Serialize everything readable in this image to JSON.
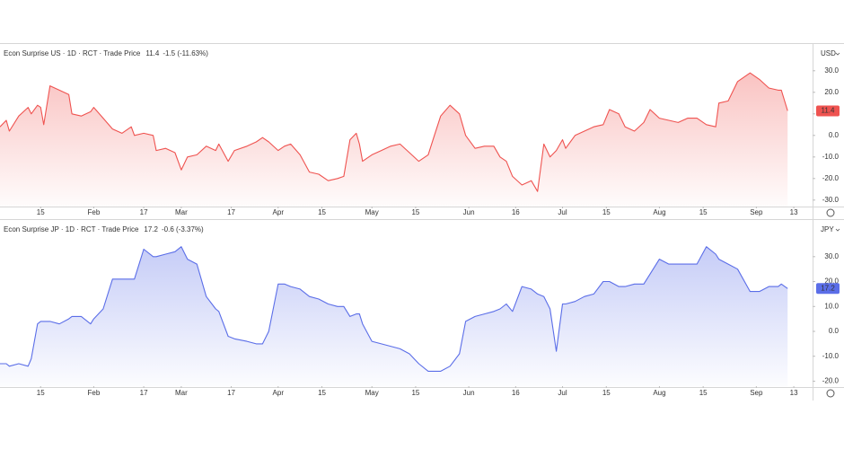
{
  "chart_data": [
    {
      "type": "area",
      "title": "Econ Surprise US · 1D · RCT · Trade Price",
      "change_label": "-1.5 (-11.63%)",
      "currency": "USD",
      "color": "#ef5350",
      "x": [
        2,
        4,
        5,
        8,
        11,
        12,
        14,
        15,
        16,
        18,
        21,
        24,
        25,
        28,
        31,
        32,
        35,
        38,
        41,
        44,
        45,
        48,
        51,
        52,
        55,
        58,
        60,
        62,
        65,
        68,
        71,
        72,
        75,
        77,
        81,
        84,
        86,
        88,
        91,
        93,
        95,
        98,
        101,
        104,
        107,
        110,
        112,
        114,
        116,
        117,
        118,
        121,
        124,
        127,
        130,
        133,
        136,
        139,
        141,
        143,
        146,
        149,
        151,
        154,
        157,
        160,
        162,
        164,
        166,
        169,
        172,
        174,
        176,
        178,
        180,
        182,
        183,
        186,
        189,
        192,
        195,
        197,
        200,
        202,
        205,
        208,
        210,
        213,
        216,
        219,
        222,
        225,
        228,
        231,
        232,
        235,
        238,
        242,
        245,
        248,
        251,
        252,
        254
      ],
      "values": [
        4,
        7,
        2,
        9,
        13,
        10,
        14,
        13,
        5,
        23,
        21,
        19,
        10,
        9,
        11,
        13,
        8,
        3,
        1,
        4,
        0,
        1,
        0,
        -7,
        -6,
        -8,
        -16,
        -10,
        -9,
        -5,
        -7,
        -4,
        -12,
        -7,
        -5,
        -3,
        -1,
        -3,
        -7,
        -5,
        -4,
        -9,
        -17,
        -18,
        -21,
        -20,
        -19,
        -2,
        1,
        -4,
        -12,
        -9,
        -7,
        -5,
        -4,
        -8,
        -12,
        -9,
        0,
        9,
        14,
        10,
        0,
        -6,
        -5,
        -5,
        -10,
        -12,
        -19,
        -23,
        -21,
        -26,
        -4,
        -10,
        -7,
        -2,
        -6,
        0,
        2,
        4,
        5,
        12,
        10,
        4,
        2,
        6,
        12,
        8,
        7,
        6,
        8,
        8,
        5,
        4,
        15,
        16,
        25,
        29,
        26,
        22,
        21,
        21,
        11.4
      ],
      "xlim": [
        2,
        262
      ],
      "xticks": [
        {
          "value": 15,
          "label": "15"
        },
        {
          "value": 32,
          "label": "Feb"
        },
        {
          "value": 48,
          "label": "17"
        },
        {
          "value": 60,
          "label": "Mar"
        },
        {
          "value": 76,
          "label": "17"
        },
        {
          "value": 91,
          "label": "Apr"
        },
        {
          "value": 105,
          "label": "15"
        },
        {
          "value": 121,
          "label": "May"
        },
        {
          "value": 135,
          "label": "15"
        },
        {
          "value": 152,
          "label": "Jun"
        },
        {
          "value": 167,
          "label": "16"
        },
        {
          "value": 182,
          "label": "Jul"
        },
        {
          "value": 196,
          "label": "15"
        },
        {
          "value": 213,
          "label": "Aug"
        },
        {
          "value": 227,
          "label": "15"
        },
        {
          "value": 244,
          "label": "Sep"
        },
        {
          "value": 256,
          "label": "13"
        }
      ],
      "ylim": [
        -33,
        42
      ],
      "yticks": [
        {
          "value": 30,
          "label": "30.0"
        },
        {
          "value": 20,
          "label": "20.0"
        },
        {
          "value": 10,
          "label": "10.0"
        },
        {
          "value": 0,
          "label": "0.0"
        },
        {
          "value": -10,
          "label": "-10.0"
        },
        {
          "value": -20,
          "label": "-20.0"
        },
        {
          "value": -30,
          "label": "-30.0"
        }
      ],
      "grid": false
    },
    {
      "type": "area",
      "title": "Econ Surprise JP · 1D · RCT · Trade Price",
      "change_label": "-0.6 (-3.37%)",
      "currency": "JPY",
      "color": "#5b6ee8",
      "x": [
        2,
        4,
        5,
        8,
        11,
        12,
        14,
        15,
        16,
        18,
        21,
        24,
        25,
        28,
        31,
        32,
        35,
        38,
        41,
        44,
        45,
        48,
        51,
        52,
        55,
        58,
        60,
        62,
        65,
        68,
        71,
        72,
        75,
        77,
        81,
        84,
        86,
        88,
        91,
        93,
        95,
        98,
        101,
        104,
        107,
        110,
        112,
        114,
        116,
        117,
        118,
        121,
        124,
        127,
        130,
        133,
        136,
        139,
        141,
        143,
        146,
        149,
        151,
        154,
        157,
        160,
        162,
        164,
        166,
        169,
        172,
        174,
        176,
        178,
        180,
        182,
        183,
        186,
        189,
        192,
        195,
        197,
        200,
        202,
        205,
        208,
        210,
        213,
        216,
        219,
        222,
        225,
        228,
        231,
        232,
        235,
        238,
        242,
        245,
        248,
        251,
        252,
        254
      ],
      "values": [
        -13,
        -13,
        -14,
        -13,
        -14,
        -11,
        3,
        4,
        4,
        4,
        3,
        5,
        6,
        6,
        3,
        5,
        9,
        21,
        21,
        21,
        21,
        33,
        30,
        30,
        31,
        32,
        34,
        29,
        27,
        14,
        9,
        8,
        -2,
        -3,
        -4,
        -5,
        -5,
        0,
        19,
        19,
        18,
        17,
        14,
        13,
        11,
        10,
        10,
        6,
        7,
        7,
        3,
        -4,
        -5,
        -6,
        -7,
        -9,
        -13,
        -16,
        -16,
        -16,
        -14,
        -9,
        4,
        6,
        7,
        8,
        9,
        11,
        8,
        18,
        17,
        15,
        14,
        9,
        -8,
        11,
        11,
        12,
        14,
        15,
        20,
        20,
        18,
        18,
        19,
        19,
        23,
        29,
        27,
        27,
        27,
        27,
        34,
        31,
        29,
        27,
        25,
        16,
        16,
        18,
        18,
        19,
        17.2
      ],
      "xlim": [
        2,
        262
      ],
      "xticks": [
        {
          "value": 15,
          "label": "15"
        },
        {
          "value": 32,
          "label": "Feb"
        },
        {
          "value": 48,
          "label": "17"
        },
        {
          "value": 60,
          "label": "Mar"
        },
        {
          "value": 76,
          "label": "17"
        },
        {
          "value": 91,
          "label": "Apr"
        },
        {
          "value": 105,
          "label": "15"
        },
        {
          "value": 121,
          "label": "May"
        },
        {
          "value": 135,
          "label": "15"
        },
        {
          "value": 152,
          "label": "Jun"
        },
        {
          "value": 167,
          "label": "16"
        },
        {
          "value": 182,
          "label": "Jul"
        },
        {
          "value": 196,
          "label": "15"
        },
        {
          "value": 213,
          "label": "Aug"
        },
        {
          "value": 227,
          "label": "15"
        },
        {
          "value": 244,
          "label": "Sep"
        },
        {
          "value": 256,
          "label": "13"
        }
      ],
      "ylim": [
        -22,
        44
      ],
      "yticks": [
        {
          "value": 30,
          "label": "30.0"
        },
        {
          "value": 20,
          "label": "20.0"
        },
        {
          "value": 10,
          "label": "10.0"
        },
        {
          "value": 0,
          "label": "0.0"
        },
        {
          "value": -10,
          "label": "-10.0"
        },
        {
          "value": -20,
          "label": "-20.0"
        }
      ],
      "grid": false
    }
  ]
}
